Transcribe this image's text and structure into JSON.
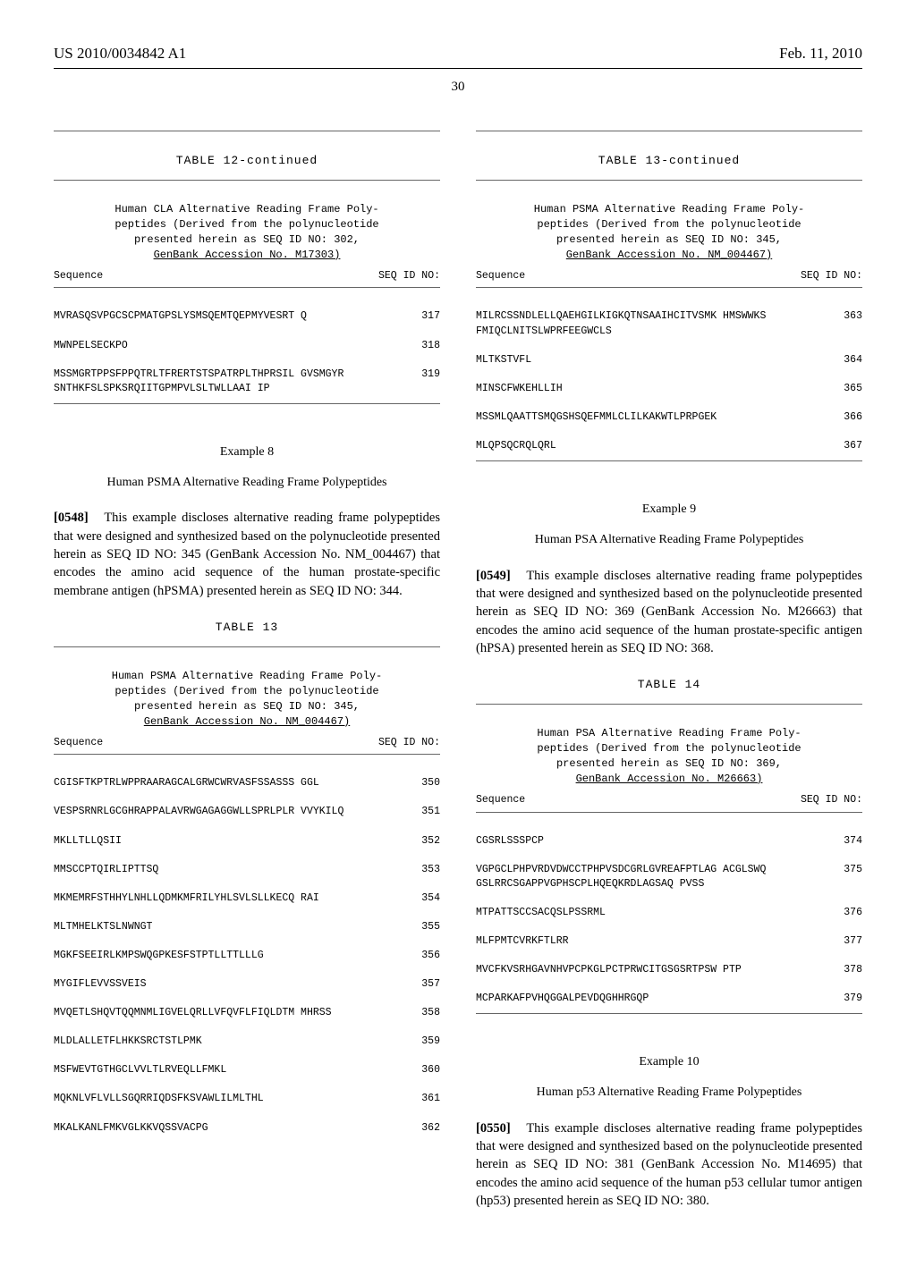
{
  "header": {
    "left": "US 2010/0034842 A1",
    "right": "Feb. 11, 2010",
    "page_number": "30"
  },
  "left_col": {
    "table12": {
      "caption": "TABLE 12-continued",
      "subtitle_lines": [
        "Human CLA Alternative Reading Frame Poly-",
        "peptides (Derived from the polynucleotide",
        "presented herein as SEQ ID NO: 302,"
      ],
      "subtitle_underline": "GenBank Accession No. M17303)",
      "col_seq": "Sequence",
      "col_id": "SEQ ID NO:",
      "rows": [
        {
          "seq": "MVRASQSVPGCSCPMATGPSLYSMSQEMTQEPMYVESRT\nQ",
          "id": "317"
        },
        {
          "seq": "MWNPELSECKPO",
          "id": "318"
        },
        {
          "seq": "MSSMGRTPPSFPPQTRLTFRERTSTSPATRPLTHPRSIL\nGVSMGYRSNTHKFSLSPKSRQIITGPMPVLSLTWLLAAI\nIP",
          "id": "319"
        }
      ]
    },
    "example8": {
      "heading": "Example 8",
      "title": "Human PSMA Alternative Reading Frame Polypeptides",
      "para_num": "[0548]",
      "para": "This example discloses alternative reading frame polypeptides that were designed and synthesized based on the polynucleotide presented herein as SEQ ID NO: 345 (GenBank Accession No. NM_004467) that encodes the amino acid sequence of the human prostate-specific membrane antigen (hPSMA) presented herein as SEQ ID NO: 344."
    },
    "table13": {
      "caption": "TABLE 13",
      "subtitle_lines": [
        "Human PSMA Alternative Reading Frame Poly-",
        "peptides (Derived from the polynucleotide",
        "presented herein as SEQ ID NO: 345,"
      ],
      "subtitle_underline": "GenBank Accession No. NM_004467)",
      "col_seq": "Sequence",
      "col_id": "SEQ ID NO:",
      "rows": [
        {
          "seq": "CGISFTKPTRLWPPRAARAGCALGRWCWRVASFSSASSS\nGGL",
          "id": "350"
        },
        {
          "seq": "VESPSRNRLGCGHRAPPALAVRWGAGAGGWLLSPRLPLR\nVVYKILQ",
          "id": "351"
        },
        {
          "seq": "MKLLTLLQSII",
          "id": "352"
        },
        {
          "seq": "MMSCCPTQIRLIPTTSQ",
          "id": "353"
        },
        {
          "seq": "MKMEMRFSTHHYLNHLLQDMKMFRILYHLSVLSLLKECQ\nRAI",
          "id": "354"
        },
        {
          "seq": "MLTMHELKTSLNWNGT",
          "id": "355"
        },
        {
          "seq": "MGKFSEEIRLKMPSWQGPKESFSTPTLLTTLLLG",
          "id": "356"
        },
        {
          "seq": "MYGIFLEVVSSVEIS",
          "id": "357"
        },
        {
          "seq": "MVQETLSHQVTQQMNMLIGVELQRLLVFQVFLFIQLDTM\nMHRSS",
          "id": "358"
        },
        {
          "seq": "MLDLALLETFLHKKSRCTSTLPMK",
          "id": "359"
        },
        {
          "seq": "MSFWEVTGTHGCLVVLTLRVEQLLFMKL",
          "id": "360"
        },
        {
          "seq": "MQKNLVFLVLLSGQRRIQDSFKSVAWLILMLTHL",
          "id": "361"
        },
        {
          "seq": "MKALKANLFMKVGLKKVQSSVACPG",
          "id": "362"
        }
      ]
    }
  },
  "right_col": {
    "table13cont": {
      "caption": "TABLE 13-continued",
      "subtitle_lines": [
        "Human PSMA Alternative Reading Frame Poly-",
        "peptides (Derived from the polynucleotide",
        "presented herein as SEQ ID NO: 345,"
      ],
      "subtitle_underline": "GenBank Accession No. NM_004467)",
      "col_seq": "Sequence",
      "col_id": "SEQ ID NO:",
      "rows": [
        {
          "seq": "MILRCSSNDLELLQAEHGILKIGKQTNSAAIHCITVSMK\nHMSWWKSFMIQCLNITSLWPRFEEGWCLS",
          "id": "363"
        },
        {
          "seq": "MLTKSTVFL",
          "id": "364"
        },
        {
          "seq": "MINSCFWKEHLLIH",
          "id": "365"
        },
        {
          "seq": "MSSMLQAATTSMQGSHSQEFMMLCLILKAKWTLPRPGEK",
          "id": "366"
        },
        {
          "seq": "MLQPSQCRQLQRL",
          "id": "367"
        }
      ]
    },
    "example9": {
      "heading": "Example 9",
      "title": "Human PSA Alternative Reading Frame Polypeptides",
      "para_num": "[0549]",
      "para": "This example discloses alternative reading frame polypeptides that were designed and synthesized based on the polynucleotide presented herein as SEQ ID NO: 369 (GenBank Accession No. M26663) that encodes the amino acid sequence of the human prostate-specific antigen (hPSA) presented herein as SEQ ID NO: 368."
    },
    "table14": {
      "caption": "TABLE 14",
      "subtitle_lines": [
        "Human PSA Alternative Reading Frame Poly-",
        "peptides (Derived from the polynucleotide",
        "presented herein as SEQ ID NO: 369,"
      ],
      "subtitle_underline": "GenBank Accession No. M26663)",
      "col_seq": "Sequence",
      "col_id": "SEQ ID NO:",
      "rows": [
        {
          "seq": "CGSRLSSSPCP",
          "id": "374"
        },
        {
          "seq": "VGPGCLPHPVRDVDWCCTPHPVSDCGRLGVREAFPTLAG\nACGLSWQGSLRRCSGAPPVGPHSCPLHQEQKRDLAGSAQ\nPVSS",
          "id": "375"
        },
        {
          "seq": "MTPATTSCCSACQSLPSSRML",
          "id": "376"
        },
        {
          "seq": "MLFPMTCVRKFTLRR",
          "id": "377"
        },
        {
          "seq": "MVCFKVSRHGAVNHVPCPKGLPCTPRWCITGSGSRTPSW\nPTP",
          "id": "378"
        },
        {
          "seq": "MCPARKAFPVHQGGALPEVDQGHHRGQP",
          "id": "379"
        }
      ]
    },
    "example10": {
      "heading": "Example 10",
      "title": "Human p53 Alternative Reading Frame Polypeptides",
      "para_num": "[0550]",
      "para": "This example discloses alternative reading frame polypeptides that were designed and synthesized based on the polynucleotide presented herein as SEQ ID NO: 381 (GenBank Accession No. M14695) that encodes the amino acid sequence of the human p53 cellular tumor antigen (hp53) presented herein as SEQ ID NO: 380."
    }
  }
}
